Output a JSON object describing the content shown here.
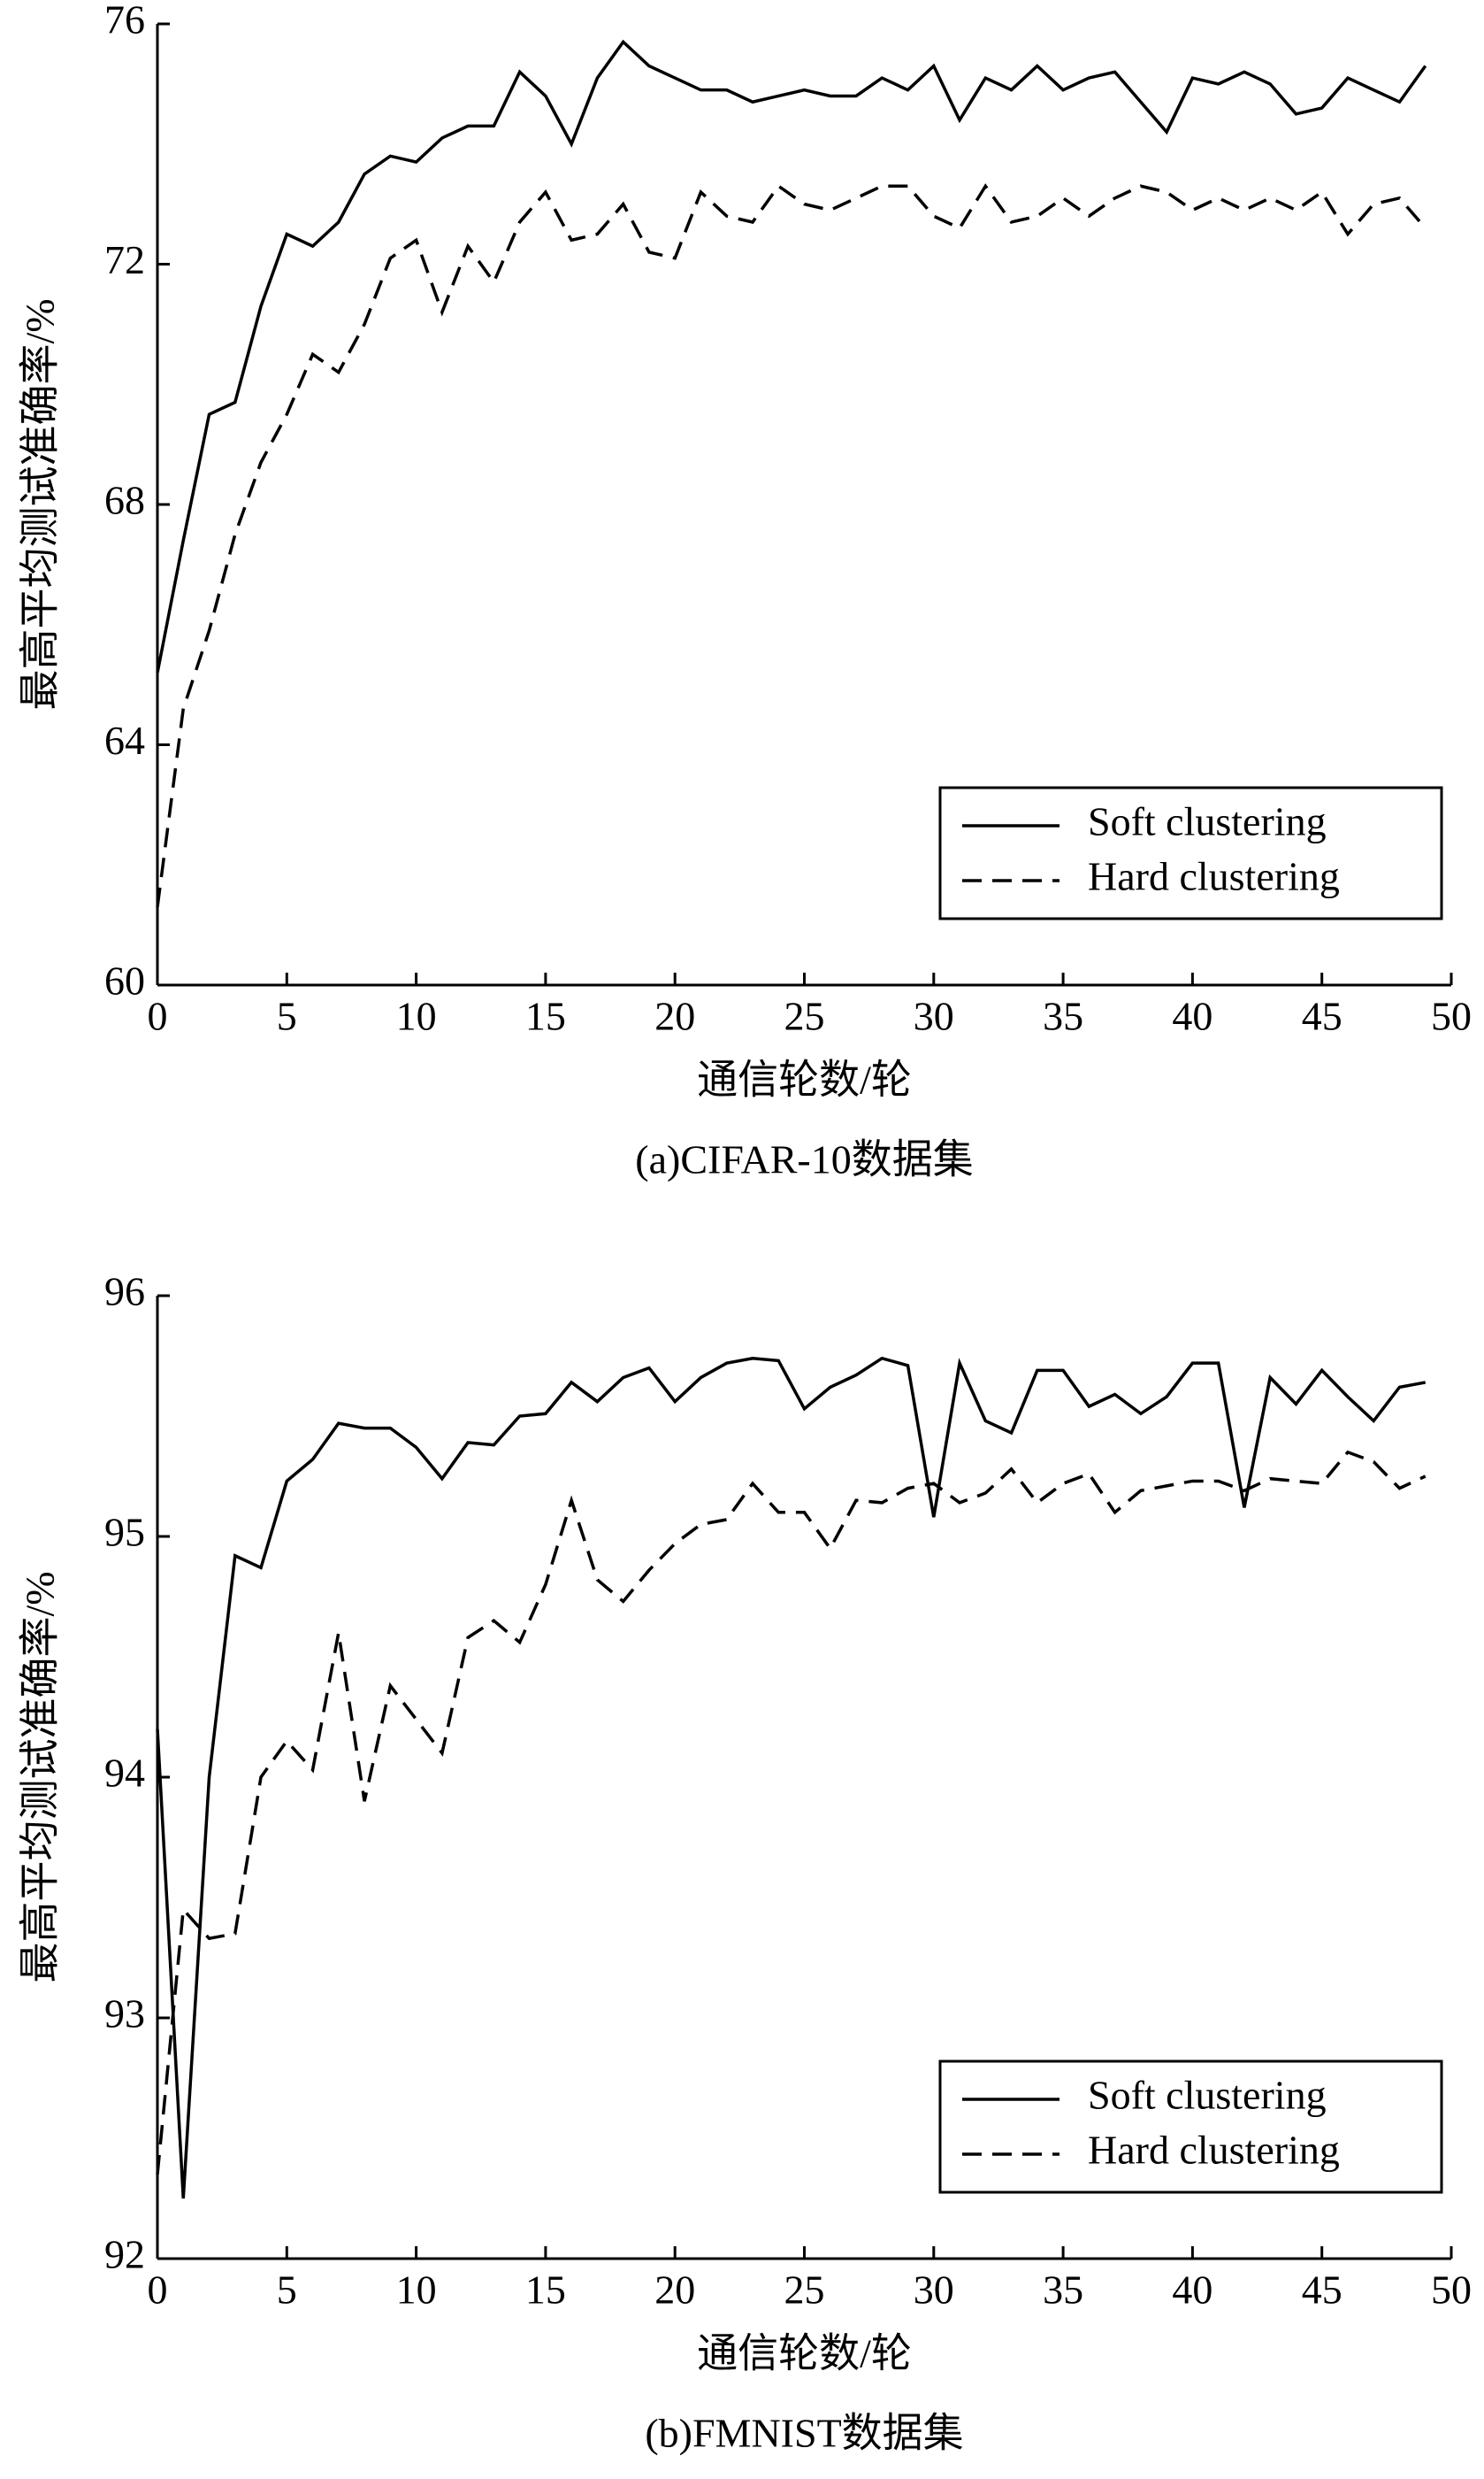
{
  "chart_data": [
    {
      "type": "line",
      "ylabel": "最高平均测试准确率/%",
      "xlabel": "通信轮数/轮",
      "caption": "(a)CIFAR-10数据集",
      "x": [
        0,
        1,
        2,
        3,
        4,
        5,
        6,
        7,
        8,
        9,
        10,
        11,
        12,
        13,
        14,
        15,
        16,
        17,
        18,
        19,
        20,
        21,
        22,
        23,
        24,
        25,
        26,
        27,
        28,
        29,
        30,
        31,
        32,
        33,
        34,
        35,
        36,
        37,
        38,
        39,
        40,
        41,
        42,
        43,
        44,
        45,
        46,
        47,
        48,
        49
      ],
      "xlim": [
        0,
        50
      ],
      "xticks": [
        0,
        5,
        10,
        15,
        20,
        25,
        30,
        35,
        40,
        45,
        50
      ],
      "ylim": [
        60,
        76
      ],
      "yticks": [
        60,
        64,
        68,
        72,
        76
      ],
      "legend": "lower right",
      "series": [
        {
          "name": "Soft clustering",
          "color": "#000000",
          "dash": "solid",
          "values": [
            65.2,
            67.4,
            69.5,
            69.7,
            71.3,
            72.5,
            72.3,
            72.7,
            73.5,
            73.8,
            73.7,
            74.1,
            74.3,
            74.3,
            75.2,
            74.8,
            74.0,
            75.1,
            75.7,
            75.3,
            75.1,
            74.9,
            74.9,
            74.7,
            74.8,
            74.9,
            74.8,
            74.8,
            75.1,
            74.9,
            75.3,
            74.4,
            75.1,
            74.9,
            75.3,
            74.9,
            75.1,
            75.2,
            74.7,
            74.2,
            75.1,
            75.0,
            75.2,
            75.0,
            74.5,
            74.6,
            75.1,
            74.9,
            74.7,
            75.3
          ]
        },
        {
          "name": "Hard clustering",
          "color": "#000000",
          "dash": "dashed",
          "values": [
            61.3,
            64.6,
            65.9,
            67.5,
            68.7,
            69.5,
            70.5,
            70.2,
            71.0,
            72.1,
            72.4,
            71.2,
            72.3,
            71.7,
            72.7,
            73.2,
            72.4,
            72.5,
            73.0,
            72.2,
            72.1,
            73.2,
            72.8,
            72.7,
            73.3,
            73.0,
            72.9,
            73.1,
            73.3,
            73.3,
            72.8,
            72.6,
            73.3,
            72.7,
            72.8,
            73.1,
            72.8,
            73.1,
            73.3,
            73.2,
            72.9,
            73.1,
            72.9,
            73.1,
            72.9,
            73.2,
            72.5,
            73.0,
            73.1,
            72.6
          ]
        }
      ]
    },
    {
      "type": "line",
      "ylabel": "最高平均测试准确率/%",
      "xlabel": "通信轮数/轮",
      "caption": "(b)FMNIST数据集",
      "x": [
        0,
        1,
        2,
        3,
        4,
        5,
        6,
        7,
        8,
        9,
        10,
        11,
        12,
        13,
        14,
        15,
        16,
        17,
        18,
        19,
        20,
        21,
        22,
        23,
        24,
        25,
        26,
        27,
        28,
        29,
        30,
        31,
        32,
        33,
        34,
        35,
        36,
        37,
        38,
        39,
        40,
        41,
        42,
        43,
        44,
        45,
        46,
        47,
        48,
        49
      ],
      "xlim": [
        0,
        50
      ],
      "xticks": [
        0,
        5,
        10,
        15,
        20,
        25,
        30,
        35,
        40,
        45,
        50
      ],
      "ylim": [
        92,
        96
      ],
      "yticks": [
        92,
        93,
        94,
        95,
        96
      ],
      "legend": "lower right",
      "series": [
        {
          "name": "Soft clustering",
          "color": "#000000",
          "dash": "solid",
          "values": [
            94.2,
            92.25,
            94.0,
            94.92,
            94.87,
            95.23,
            95.32,
            95.47,
            95.45,
            95.45,
            95.37,
            95.24,
            95.39,
            95.38,
            95.5,
            95.51,
            95.64,
            95.56,
            95.66,
            95.7,
            95.56,
            95.66,
            95.72,
            95.74,
            95.73,
            95.53,
            95.62,
            95.67,
            95.74,
            95.71,
            95.08,
            95.72,
            95.48,
            95.43,
            95.69,
            95.69,
            95.54,
            95.59,
            95.51,
            95.58,
            95.72,
            95.72,
            95.12,
            95.66,
            95.55,
            95.69,
            95.58,
            95.48,
            95.62,
            95.64
          ]
        },
        {
          "name": "Hard clustering",
          "color": "#000000",
          "dash": "dashed",
          "values": [
            92.35,
            93.45,
            93.33,
            93.35,
            94.0,
            94.15,
            94.03,
            94.6,
            93.9,
            94.38,
            94.24,
            94.1,
            94.58,
            94.65,
            94.56,
            94.8,
            95.15,
            94.82,
            94.73,
            94.86,
            94.97,
            95.05,
            95.07,
            95.22,
            95.1,
            95.1,
            94.95,
            95.15,
            95.14,
            95.2,
            95.22,
            95.14,
            95.18,
            95.28,
            95.14,
            95.22,
            95.26,
            95.1,
            95.19,
            95.21,
            95.23,
            95.23,
            95.19,
            95.24,
            95.23,
            95.22,
            95.35,
            95.31,
            95.2,
            95.25
          ]
        }
      ]
    }
  ]
}
